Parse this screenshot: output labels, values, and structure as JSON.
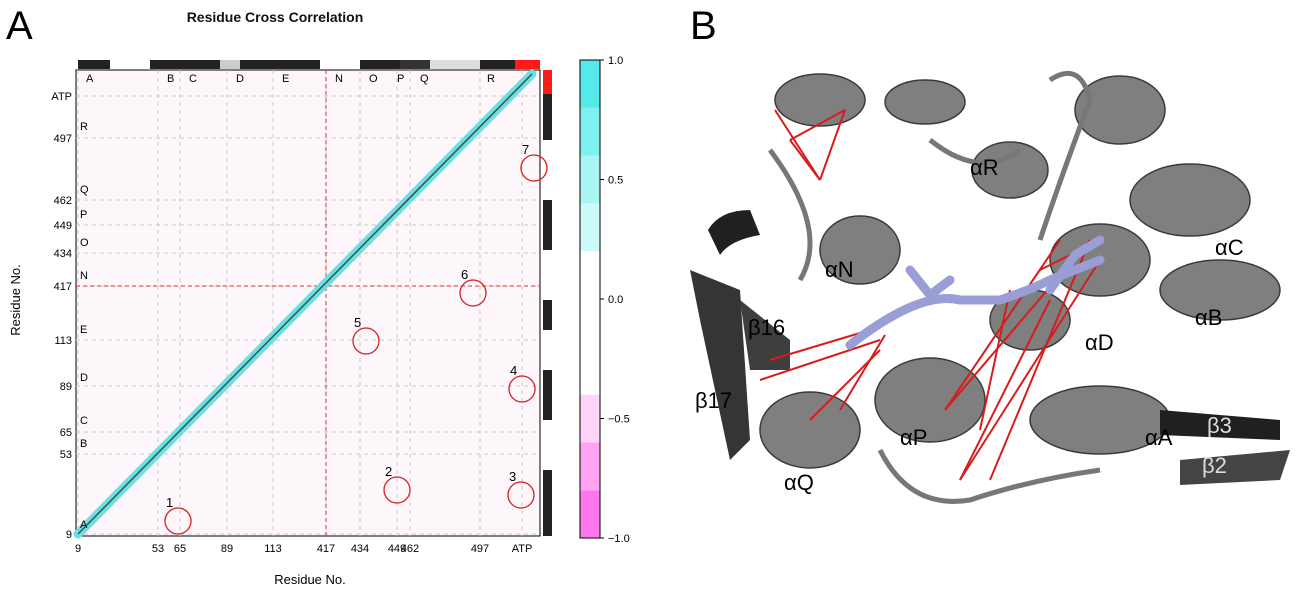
{
  "panels": {
    "a": "A",
    "b": "B"
  },
  "plot_title": "Residue Cross Correlation",
  "chart_data": {
    "type": "heatmap",
    "title": "Residue Cross Correlation",
    "xlabel": "Residue No.",
    "ylabel": "Residue No.",
    "ticks": [
      "9",
      "53",
      "65",
      "89",
      "113",
      "417",
      "434",
      "449",
      "462",
      "497",
      "ATP"
    ],
    "regions": [
      "A",
      "B",
      "C",
      "D",
      "E",
      "N",
      "O",
      "P",
      "Q",
      "R"
    ],
    "colorbar": {
      "ticks": [
        "1.0",
        "0.5",
        "0.0",
        "−0.5",
        "−1.0"
      ],
      "range": [
        -1,
        1
      ],
      "colors": [
        "#ff77ee",
        "#ffa4f2",
        "#ffd4f8",
        "#ffffff",
        "#ffffff",
        "#ffffff",
        "#ccfbfa",
        "#a8f5f4",
        "#7ef0ef",
        "#55e9e9"
      ]
    },
    "markers": [
      "1",
      "2",
      "3",
      "4",
      "5",
      "6",
      "7"
    ]
  },
  "structure_labels": [
    "αR",
    "αN",
    "αC",
    "αB",
    "αD",
    "β16",
    "β17",
    "αP",
    "αQ",
    "αA",
    "β3",
    "β2"
  ]
}
